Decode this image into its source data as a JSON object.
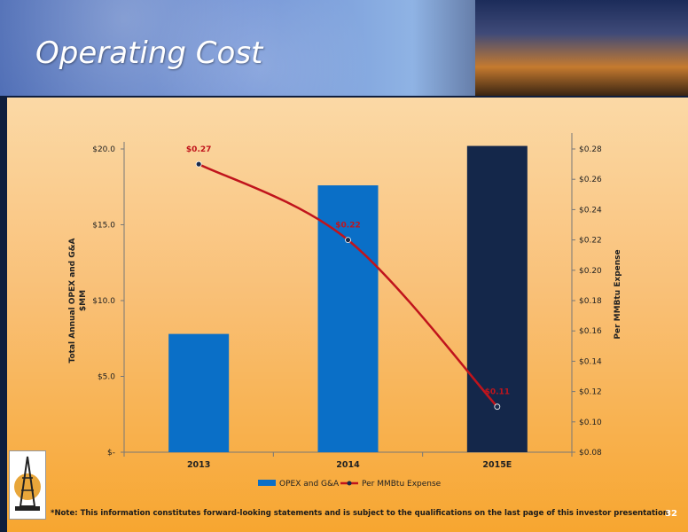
{
  "header": {
    "title": "Operating Cost"
  },
  "footer": {
    "note": "*Note: This information constitutes forward-looking statements and is subject to the qualifications on the last page of this investor presentation",
    "page_number": "32"
  },
  "colors": {
    "bar": "#0a6fc7",
    "bar_estimate": "#14274a",
    "line": "#c0141c",
    "point_label": "#c0141c"
  },
  "chart_data": {
    "type": "bar",
    "categories": [
      "2013",
      "2014",
      "2015E"
    ],
    "series": [
      {
        "name": "OPEX and G&A",
        "type": "bar",
        "axis": "left",
        "values": [
          7.8,
          17.6,
          20.2
        ]
      },
      {
        "name": "Per MMBtu Expense",
        "type": "line",
        "axis": "right",
        "values": [
          0.27,
          0.22,
          0.11
        ],
        "labels": [
          "$0.27",
          "$0.22",
          "$0.11"
        ]
      }
    ],
    "ylabel": "Total Annual OPEX and G&A $MM",
    "ylabel_lines": [
      "Total Annual OPEX and G&A",
      "$MM"
    ],
    "y2label": "Per MMBtu Expense",
    "ylim": [
      0,
      20
    ],
    "y2lim": [
      0.08,
      0.28
    ],
    "y_ticks": [
      0,
      5,
      10,
      15,
      20
    ],
    "y_tick_labels": [
      "$-",
      "$5.0",
      "$10.0",
      "$15.0",
      "$20.0"
    ],
    "y2_ticks": [
      0.08,
      0.1,
      0.12,
      0.14,
      0.16,
      0.18,
      0.2,
      0.22,
      0.24,
      0.26,
      0.28
    ],
    "y2_tick_labels": [
      "$0.08",
      "$0.10",
      "$0.12",
      "$0.14",
      "$0.16",
      "$0.18",
      "$0.20",
      "$0.22",
      "$0.24",
      "$0.26",
      "$0.28"
    ],
    "legend": [
      "OPEX and G&A",
      "Per MMBtu Expense"
    ],
    "legend_position": "bottom",
    "grid": false
  }
}
